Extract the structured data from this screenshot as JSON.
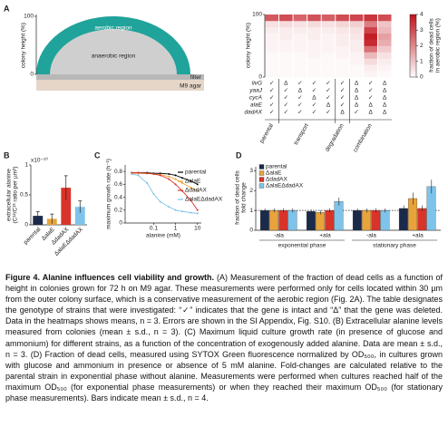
{
  "panel_labels": [
    "A",
    "B",
    "C",
    "D"
  ],
  "diagram": {
    "y_label": "colony height (%)",
    "yticks": [
      0,
      100
    ],
    "aerobic": "aerobic region",
    "anaerobic": "anaerobic region",
    "filter": "filter",
    "agar": "M9 agar"
  },
  "chart_data": [
    {
      "type": "heatmap",
      "y_label": "colony height (%)",
      "ylim": [
        0,
        100
      ],
      "yticks": [
        0,
        100
      ],
      "z_label": [
        "fraction of dead cells",
        "in aerobic region (%)"
      ],
      "zlim": [
        0,
        4
      ],
      "zticks": [
        0,
        1,
        2,
        3,
        4
      ],
      "color": "#c0121b",
      "genes": [
        "livG",
        "yaaJ",
        "cycA",
        "alaE",
        "dadAX"
      ],
      "groups": [
        {
          "name": "parental",
          "columns": [
            {
              "genotype": [
                "✓",
                "✓",
                "✓",
                "✓",
                "✓"
              ],
              "values": [
                0.1,
                0.1,
                0.1,
                0.1,
                0.2,
                0.2,
                0.2,
                0.3,
                0.5,
                2.8
              ]
            }
          ]
        },
        {
          "name": "transport",
          "columns": [
            {
              "genotype": [
                "Δ",
                "✓",
                "✓",
                "✓",
                "✓"
              ],
              "values": [
                0.1,
                0.1,
                0.1,
                0.1,
                0.2,
                0.2,
                0.3,
                0.3,
                0.6,
                3.0
              ]
            },
            {
              "genotype": [
                "✓",
                "Δ",
                "✓",
                "✓",
                "✓"
              ],
              "values": [
                0.1,
                0.1,
                0.1,
                0.1,
                0.2,
                0.2,
                0.2,
                0.3,
                0.5,
                2.6
              ]
            },
            {
              "genotype": [
                "✓",
                "✓",
                "Δ",
                "✓",
                "✓"
              ],
              "values": [
                0.1,
                0.1,
                0.1,
                0.2,
                0.2,
                0.2,
                0.3,
                0.3,
                0.6,
                2.9
              ]
            },
            {
              "genotype": [
                "✓",
                "✓",
                "✓",
                "Δ",
                "✓"
              ],
              "values": [
                0.1,
                0.1,
                0.1,
                0.1,
                0.2,
                0.2,
                0.2,
                0.3,
                0.5,
                2.7
              ]
            }
          ]
        },
        {
          "name": "degradation",
          "columns": [
            {
              "genotype": [
                "✓",
                "✓",
                "✓",
                "✓",
                "Δ"
              ],
              "values": [
                0.1,
                0.1,
                0.1,
                0.2,
                0.2,
                0.3,
                0.3,
                0.4,
                0.7,
                3.0
              ]
            }
          ]
        },
        {
          "name": "combination",
          "columns": [
            {
              "genotype": [
                "Δ",
                "Δ",
                "Δ",
                "Δ",
                "✓"
              ],
              "values": [
                0.1,
                0.1,
                0.2,
                0.2,
                0.3,
                0.3,
                0.4,
                0.5,
                0.8,
                3.1
              ]
            },
            {
              "genotype": [
                "✓",
                "✓",
                "✓",
                "Δ",
                "Δ"
              ],
              "values": [
                0.2,
                0.3,
                0.6,
                1.2,
                2.4,
                3.6,
                3.8,
                3.2,
                2.2,
                3.4
              ]
            },
            {
              "genotype": [
                "Δ",
                "Δ",
                "Δ",
                "Δ",
                "Δ"
              ],
              "values": [
                0.1,
                0.2,
                0.3,
                0.5,
                0.9,
                1.4,
                1.6,
                1.2,
                1.0,
                3.0
              ]
            }
          ]
        }
      ]
    },
    {
      "type": "bar",
      "multiplier": "x10⁻¹⁰",
      "y_label": [
        "extracellular alanine",
        "(C¹²/C¹³ ratio per µm³)"
      ],
      "categories": [
        "parental",
        "ΔalaE",
        "ΔdadAX",
        "ΔalaEΔdadAX"
      ],
      "values": [
        0.15,
        0.1,
        0.62,
        0.3
      ],
      "errors": [
        0.07,
        0.08,
        0.2,
        0.1
      ],
      "colors": [
        "#1b2a4a",
        "#e8a33a",
        "#d9342b",
        "#7ec3ea"
      ],
      "ylim": [
        0,
        1
      ],
      "yticks": [
        0,
        0.5,
        1
      ]
    },
    {
      "type": "line",
      "xscale": "log",
      "x_label": "alanine (mM)",
      "y_label": "maximum growth rate (h⁻¹)",
      "x": [
        0.01,
        0.02,
        0.05,
        0.1,
        0.2,
        0.5,
        1,
        2,
        5,
        10
      ],
      "xlim": [
        0.005,
        15
      ],
      "xticks": [
        0.1,
        1,
        10
      ],
      "ylim": [
        0,
        0.9
      ],
      "yticks": [
        0,
        0.2,
        0.4,
        0.6,
        0.8
      ],
      "series": [
        {
          "name": "parental",
          "color": "#000000",
          "values": [
            0.78,
            0.78,
            0.78,
            0.77,
            0.77,
            0.76,
            0.74,
            0.7,
            0.65,
            0.6
          ]
        },
        {
          "name": "ΔalaE",
          "color": "#e8a33a",
          "values": [
            0.77,
            0.77,
            0.77,
            0.76,
            0.75,
            0.72,
            0.68,
            0.62,
            0.55,
            0.5
          ]
        },
        {
          "name": "ΔdadAX",
          "color": "#d9342b",
          "values": [
            0.78,
            0.78,
            0.77,
            0.76,
            0.74,
            0.68,
            0.6,
            0.5,
            0.35,
            0.2
          ]
        },
        {
          "name": "ΔalaEΔdadAX",
          "color": "#7ec3ea",
          "values": [
            0.76,
            0.74,
            0.62,
            0.45,
            0.33,
            0.25,
            0.2,
            0.18,
            0.16,
            0.15
          ]
        }
      ]
    },
    {
      "type": "grouped_bar",
      "y_label": [
        "fraction of dead cells",
        "fold change"
      ],
      "categories": [
        "-ala",
        "+ala",
        "-ala",
        "+ala"
      ],
      "category_groups": [
        "exponential phase",
        "stationary phase"
      ],
      "ylim": [
        0,
        3.2
      ],
      "yticks": [
        0,
        1,
        2,
        3
      ],
      "reference_line": 1,
      "legend": "upper left",
      "series": [
        {
          "name": "parental",
          "color": "#1b2a4a",
          "values": [
            1,
            0.95,
            1,
            1.1
          ],
          "errors": [
            0.1,
            0.1,
            0.1,
            0.15
          ]
        },
        {
          "name": "ΔalaE",
          "color": "#e8a33a",
          "values": [
            1,
            0.9,
            1,
            1.6
          ],
          "errors": [
            0.1,
            0.1,
            0.1,
            0.3
          ]
        },
        {
          "name": "ΔdadAX",
          "color": "#d9342b",
          "values": [
            1,
            1.0,
            1,
            1.1
          ],
          "errors": [
            0.1,
            0.1,
            0.1,
            0.15
          ]
        },
        {
          "name": "ΔalaEΔdadAX",
          "color": "#7ec3ea",
          "values": [
            1,
            1.45,
            1,
            2.2
          ],
          "errors": [
            0.1,
            0.2,
            0.1,
            0.35
          ]
        }
      ]
    }
  ],
  "caption": {
    "title": "Figure 4. Alanine influences cell viability and growth.",
    "text": "(A) Measurement of the fraction of dead cells as a function of height in colonies grown for 72 h on M9 agar. These measurements were performed only for cells located within 30 µm from the outer colony surface, which is a conservative measurement of the aerobic region (Fig. 2A). The table designates the genotype of strains that were investigated: “✓” indicates that the gene is intact and “Δ” that the gene was deleted. Data in the heatmaps shows means, n = 3. Errors are shown in the SI Appendix, Fig. S10. (B) Extracellular alanine levels measured from colonies (mean ± s.d., n = 3). (C) Maximum liquid culture growth rate (in presence of glucose and ammonium) for different strains, as a function of the concentration of exogenously added alanine. Data are mean ± s.d., n = 3. (D) Fraction of dead cells, measured using SYTOX Green fluorescence normalized by OD₅₀₀, in cultures grown with glucose and ammonium in presence or absence of 5 mM alanine. Fold-changes are calculated relative to the parental strain in exponential phase without alanine. Measurements were performed when cultures reached half of the maximum OD₅₀₀ (for exponential phase measurements) or when they reached their maximum OD₅₀₀ (for stationary phase measurements). Bars indicate mean ± s.d., n = 4."
  }
}
